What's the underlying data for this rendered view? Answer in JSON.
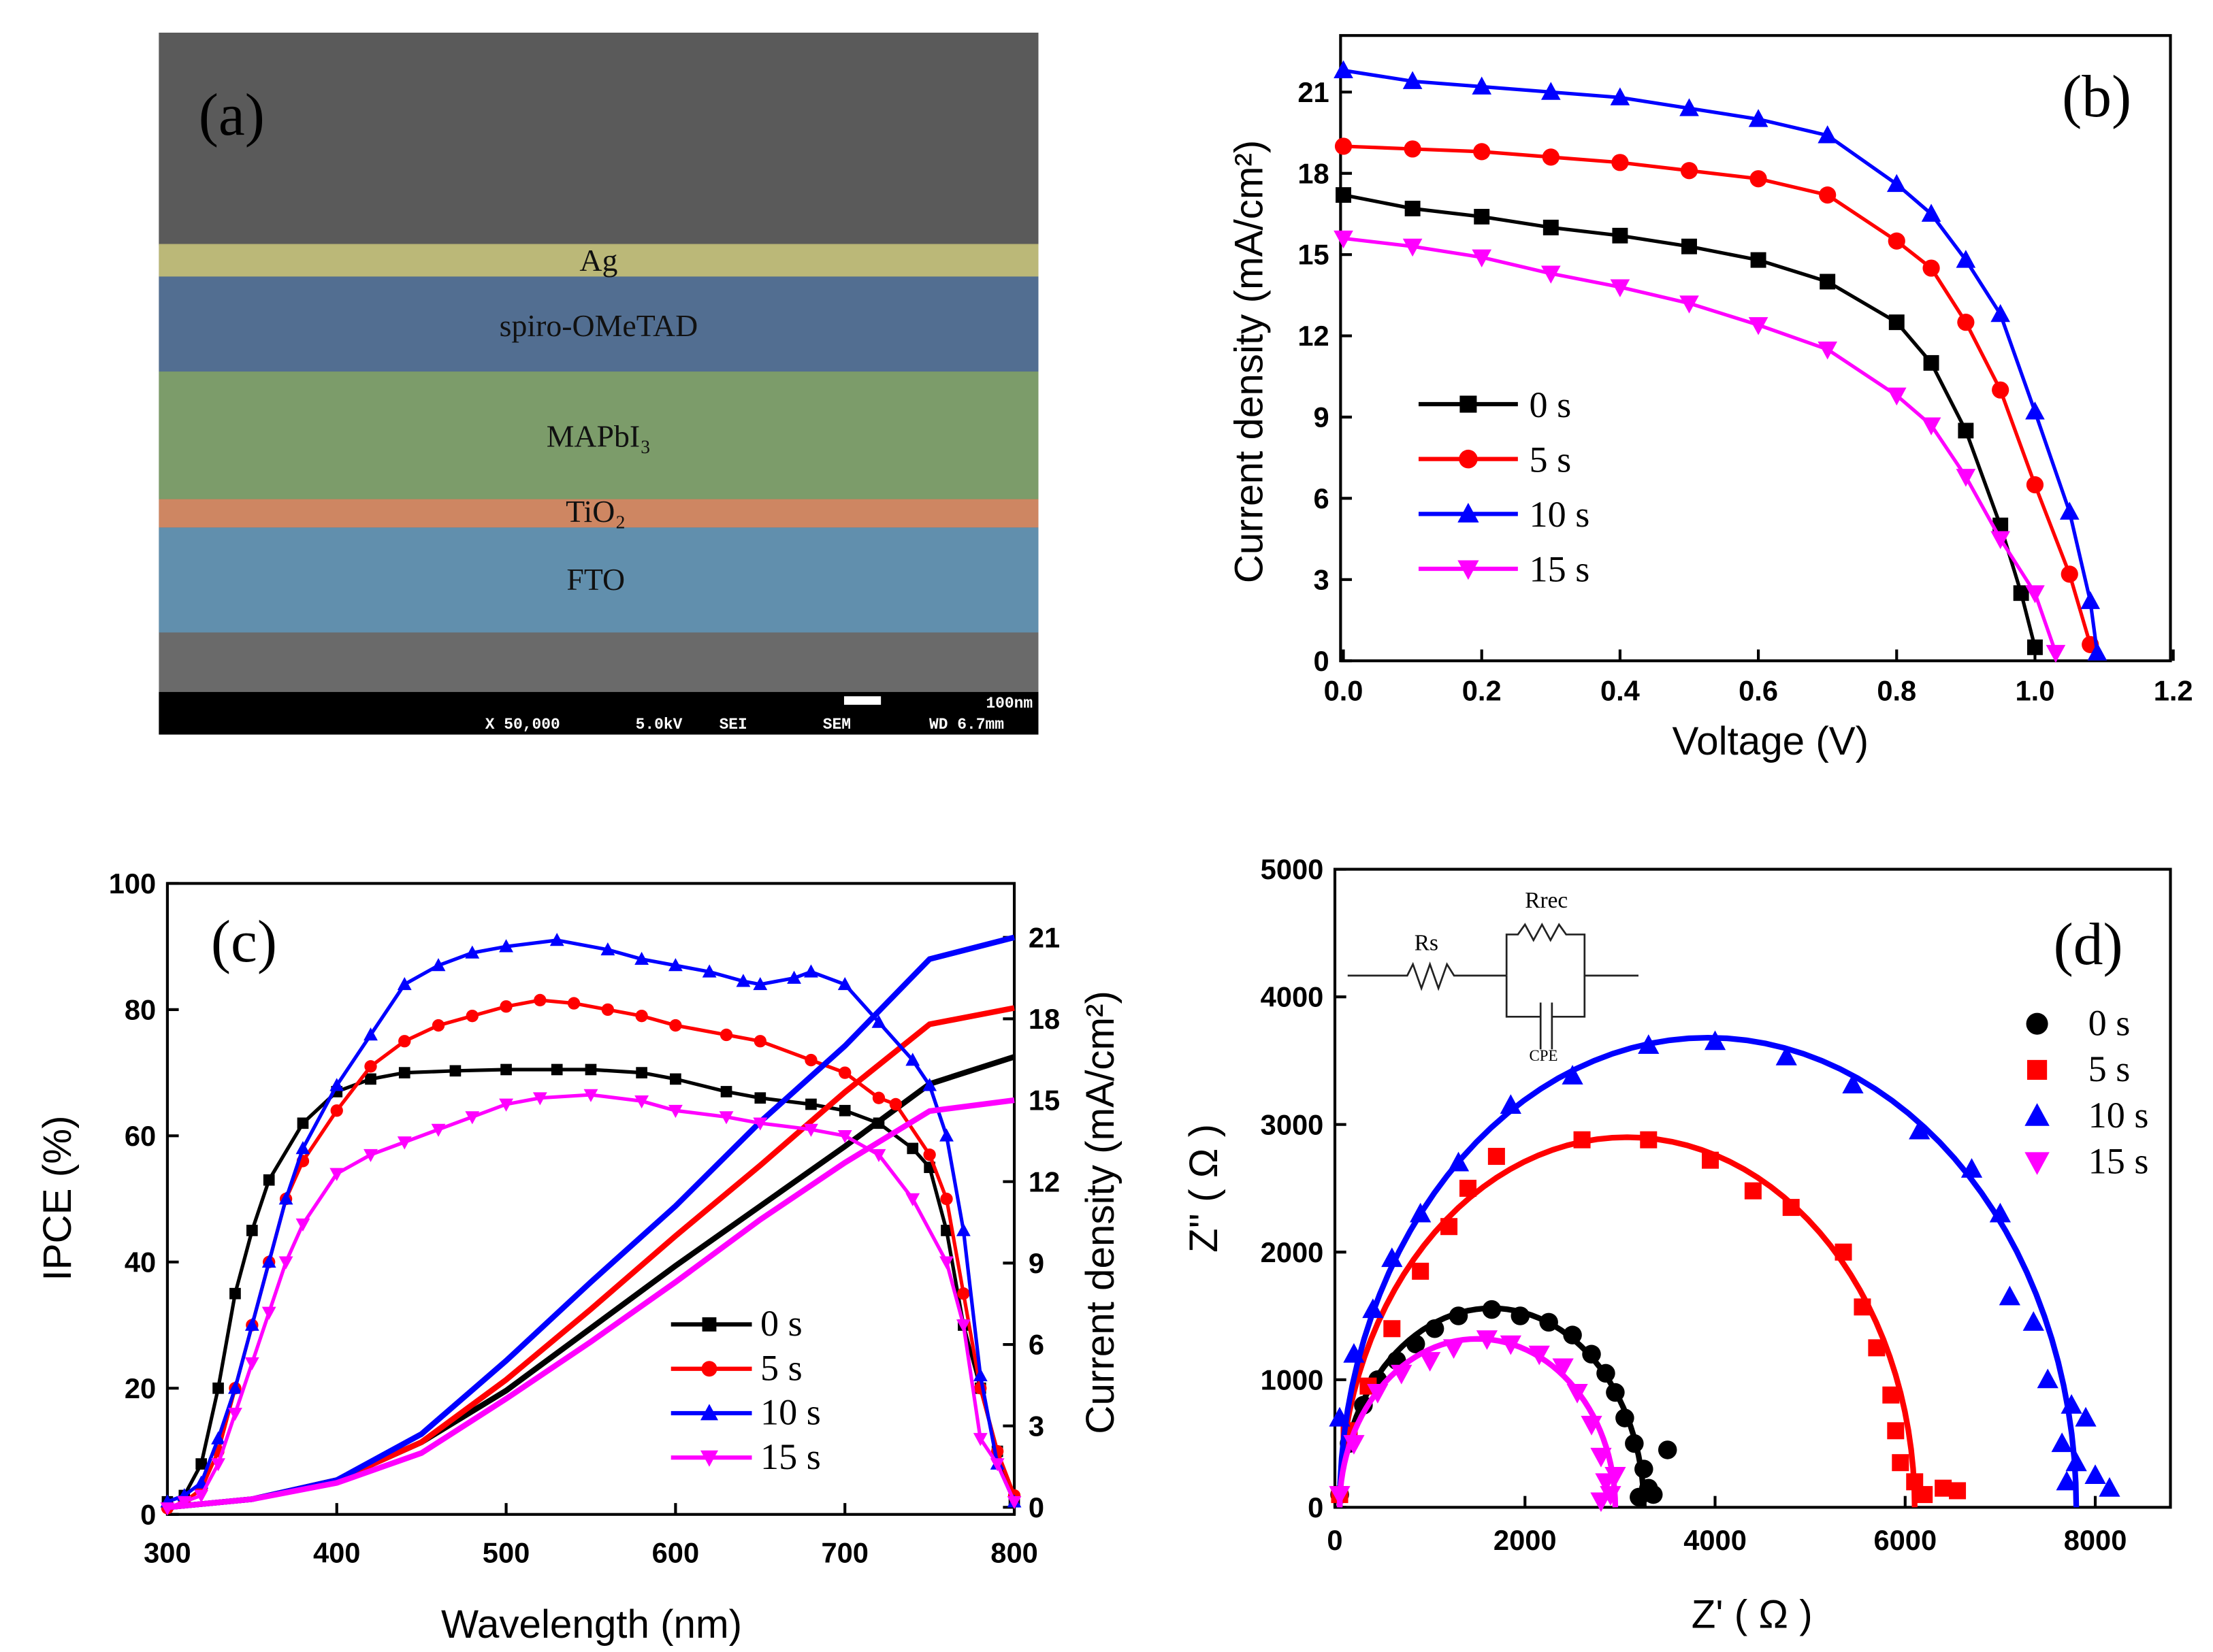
{
  "panel_a": {
    "label": "(a)",
    "layers": [
      "Ag",
      "spiro-OMeTAD",
      "MAPbI₃",
      "TiO₂",
      "FTO"
    ],
    "layer_colors": [
      "#c9c67a",
      "#4d6f98",
      "#7fa56a",
      "#d98a62",
      "#5f95b8"
    ],
    "sem_bar": {
      "magnification": "X 50,000",
      "voltage": "5.0kV",
      "mode": "SEI",
      "instrument": "SEM",
      "wd": "WD 6.7mm",
      "scale": "100nm"
    }
  },
  "chart_data": [
    {
      "id": "b",
      "type": "line",
      "label": "(b)",
      "xlabel": "Voltage (V)",
      "ylabel": "Current density (mA/cm²)",
      "xlim": [
        0,
        1.2
      ],
      "ylim": [
        0,
        22.9
      ],
      "xticks": [
        "0.0",
        "0.2",
        "0.4",
        "0.6",
        "0.8",
        "1.0",
        "1.2"
      ],
      "yticks": [
        "0",
        "3",
        "6",
        "9",
        "12",
        "15",
        "18",
        "21"
      ],
      "legend": "center-left",
      "series": [
        {
          "name": "0 s",
          "color": "#000000",
          "marker": "square",
          "x": [
            0,
            0.1,
            0.2,
            0.3,
            0.4,
            0.5,
            0.6,
            0.7,
            0.8,
            0.85,
            0.9,
            0.95,
            0.98,
            1.0
          ],
          "y": [
            17.2,
            16.7,
            16.4,
            16.0,
            15.7,
            15.3,
            14.8,
            14.0,
            12.5,
            11.0,
            8.5,
            5.0,
            2.5,
            0.5
          ]
        },
        {
          "name": "5 s",
          "color": "#ff0000",
          "marker": "circle",
          "x": [
            0,
            0.1,
            0.2,
            0.3,
            0.4,
            0.5,
            0.6,
            0.7,
            0.8,
            0.85,
            0.9,
            0.95,
            1.0,
            1.05,
            1.08
          ],
          "y": [
            19.0,
            18.9,
            18.8,
            18.6,
            18.4,
            18.1,
            17.8,
            17.2,
            15.5,
            14.5,
            12.5,
            10.0,
            6.5,
            3.2,
            0.6
          ]
        },
        {
          "name": "10 s",
          "color": "#0000ff",
          "marker": "triangle-up",
          "x": [
            0,
            0.1,
            0.2,
            0.3,
            0.4,
            0.5,
            0.6,
            0.7,
            0.8,
            0.85,
            0.9,
            0.95,
            1.0,
            1.05,
            1.08,
            1.09
          ],
          "y": [
            21.8,
            21.4,
            21.2,
            21.0,
            20.8,
            20.4,
            20.0,
            19.4,
            17.6,
            16.5,
            14.8,
            12.8,
            9.2,
            5.5,
            2.2,
            0.3
          ]
        },
        {
          "name": "15 s",
          "color": "#ff00ff",
          "marker": "triangle-down",
          "x": [
            0,
            0.1,
            0.2,
            0.3,
            0.4,
            0.5,
            0.6,
            0.7,
            0.8,
            0.85,
            0.9,
            0.95,
            1.0,
            1.03
          ],
          "y": [
            15.6,
            15.3,
            14.9,
            14.3,
            13.8,
            13.2,
            12.4,
            11.5,
            9.8,
            8.7,
            6.8,
            4.5,
            2.5,
            0.3
          ]
        }
      ]
    },
    {
      "id": "c",
      "type": "line",
      "label": "(c)",
      "xlabel": "Wavelength (nm)",
      "ylabel": "IPCE (%)",
      "ylabel_right": "Current density (mA/cm²)",
      "xlim": [
        300,
        800
      ],
      "ylim": [
        0,
        100
      ],
      "ylim_right": [
        0,
        23.3
      ],
      "xticks": [
        "300",
        "400",
        "500",
        "600",
        "700",
        "800"
      ],
      "yticks": [
        "0",
        "20",
        "40",
        "60",
        "80",
        "100"
      ],
      "yticks_right": [
        "0",
        "3",
        "6",
        "9",
        "12",
        "15",
        "18",
        "21"
      ],
      "legend": "center",
      "series": [
        {
          "name": "0 s",
          "color": "#000000",
          "marker": "square",
          "x": [
            300,
            310,
            320,
            330,
            340,
            350,
            360,
            380,
            400,
            420,
            440,
            470,
            500,
            530,
            550,
            580,
            600,
            630,
            650,
            680,
            700,
            720,
            740,
            750,
            760,
            770,
            780,
            790,
            800
          ],
          "y": [
            2,
            3,
            8,
            20,
            35,
            45,
            53,
            62,
            67,
            69,
            70,
            70.3,
            70.5,
            70.5,
            70.5,
            70,
            69,
            67,
            66,
            65,
            64,
            62,
            58,
            55,
            45,
            30,
            20,
            10,
            2
          ],
          "jsc_x": [
            300,
            350,
            400,
            450,
            500,
            550,
            600,
            650,
            700,
            750,
            800
          ],
          "jsc_y": [
            0,
            0.3,
            1.0,
            2.4,
            4.3,
            6.6,
            8.9,
            11.1,
            13.3,
            15.6,
            16.6
          ]
        },
        {
          "name": "5 s",
          "color": "#ff0000",
          "marker": "circle",
          "x": [
            300,
            310,
            320,
            330,
            340,
            350,
            360,
            370,
            380,
            400,
            420,
            440,
            460,
            480,
            500,
            520,
            540,
            560,
            580,
            600,
            630,
            650,
            680,
            700,
            720,
            730,
            750,
            760,
            770,
            780,
            790,
            800
          ],
          "y": [
            1,
            2,
            4,
            10,
            20,
            30,
            40,
            50,
            56,
            64,
            71,
            75,
            77.5,
            79,
            80.5,
            81.5,
            81,
            80,
            79,
            77.5,
            76,
            75,
            72,
            70,
            66,
            65,
            57,
            50,
            35,
            20,
            10,
            3
          ],
          "jsc_x": [
            300,
            350,
            400,
            450,
            500,
            550,
            600,
            650,
            700,
            750,
            800
          ],
          "jsc_y": [
            0,
            0.3,
            1.0,
            2.4,
            4.7,
            7.3,
            10.0,
            12.6,
            15.3,
            17.8,
            18.4
          ]
        },
        {
          "name": "10 s",
          "color": "#0000ff",
          "marker": "triangle-up",
          "x": [
            300,
            310,
            320,
            330,
            340,
            350,
            360,
            370,
            380,
            400,
            420,
            440,
            460,
            480,
            500,
            530,
            560,
            580,
            600,
            620,
            640,
            650,
            670,
            680,
            700,
            720,
            740,
            750,
            760,
            770,
            780,
            790,
            800
          ],
          "y": [
            2,
            3,
            5,
            12,
            20,
            30,
            40,
            50,
            58,
            68,
            76,
            84,
            87,
            89,
            90,
            91,
            89.5,
            88,
            87,
            86,
            84.5,
            84,
            85,
            86,
            84,
            78,
            72,
            68,
            60,
            45,
            22,
            8,
            2
          ],
          "jsc_x": [
            300,
            350,
            400,
            450,
            500,
            550,
            600,
            650,
            700,
            750,
            800
          ],
          "jsc_y": [
            0,
            0.3,
            1.0,
            2.7,
            5.4,
            8.3,
            11.1,
            14.2,
            17.0,
            20.2,
            21.0
          ]
        },
        {
          "name": "15 s",
          "color": "#ff00ff",
          "marker": "triangle-down",
          "x": [
            300,
            310,
            320,
            330,
            340,
            350,
            360,
            370,
            380,
            400,
            420,
            440,
            460,
            480,
            500,
            520,
            550,
            580,
            600,
            630,
            650,
            680,
            700,
            720,
            740,
            760,
            770,
            780,
            790,
            800
          ],
          "y": [
            1,
            2,
            3,
            8,
            16,
            24,
            32,
            40,
            46,
            54,
            57,
            59,
            61,
            63,
            65,
            66,
            66.5,
            65.5,
            64,
            63,
            62,
            61,
            60,
            57,
            50,
            40,
            30,
            12,
            8,
            2
          ],
          "jsc_x": [
            300,
            350,
            400,
            450,
            500,
            550,
            600,
            650,
            700,
            750,
            800
          ],
          "jsc_y": [
            0,
            0.3,
            0.9,
            2.0,
            4.0,
            6.1,
            8.3,
            10.6,
            12.7,
            14.6,
            15.0
          ]
        }
      ]
    },
    {
      "id": "d",
      "type": "scatter",
      "label": "(d)",
      "xlabel": "Z' ( Ω )",
      "ylabel": "Z'' ( Ω )",
      "xlim": [
        0,
        8800
      ],
      "ylim": [
        0,
        5000
      ],
      "xticks": [
        "0",
        "2000",
        "4000",
        "6000",
        "8000"
      ],
      "yticks": [
        "0",
        "1000",
        "2000",
        "3000",
        "4000",
        "5000"
      ],
      "legend": "right",
      "circuit": {
        "labels": [
          "Rs",
          "Rrec",
          "CPE"
        ]
      },
      "series": [
        {
          "name": "0 s",
          "color": "#000000",
          "marker": "circle",
          "fit": {
            "Rs": 50,
            "Rrec": 3200,
            "peak": 1560
          },
          "points": [
            [
              50,
              100
            ],
            [
              150,
              500
            ],
            [
              300,
              800
            ],
            [
              450,
              1000
            ],
            [
              650,
              1150
            ],
            [
              850,
              1280
            ],
            [
              1050,
              1400
            ],
            [
              1300,
              1500
            ],
            [
              1650,
              1550
            ],
            [
              1950,
              1500
            ],
            [
              2250,
              1450
            ],
            [
              2500,
              1350
            ],
            [
              2700,
              1200
            ],
            [
              2850,
              1050
            ],
            [
              2950,
              900
            ],
            [
              3050,
              700
            ],
            [
              3150,
              500
            ],
            [
              3250,
              300
            ],
            [
              3300,
              150
            ],
            [
              3200,
              80
            ],
            [
              3350,
              100
            ],
            [
              3500,
              450
            ]
          ]
        },
        {
          "name": "5 s",
          "color": "#ff0000",
          "marker": "square",
          "fit": {
            "Rs": 50,
            "Rrec": 6050,
            "peak": 2900
          },
          "points": [
            [
              50,
              100
            ],
            [
              150,
              600
            ],
            [
              350,
              950
            ],
            [
              600,
              1400
            ],
            [
              900,
              1850
            ],
            [
              1200,
              2200
            ],
            [
              1400,
              2500
            ],
            [
              1700,
              2750
            ],
            [
              2600,
              2880
            ],
            [
              3300,
              2880
            ],
            [
              3950,
              2720
            ],
            [
              4400,
              2480
            ],
            [
              4800,
              2350
            ],
            [
              5350,
              2000
            ],
            [
              5550,
              1570
            ],
            [
              5700,
              1250
            ],
            [
              5850,
              880
            ],
            [
              5900,
              600
            ],
            [
              5950,
              350
            ],
            [
              6100,
              200
            ],
            [
              6200,
              100
            ],
            [
              6400,
              150
            ],
            [
              6550,
              130
            ]
          ]
        },
        {
          "name": "10 s",
          "color": "#0000ff",
          "marker": "triangle-up",
          "fit": {
            "Rs": 50,
            "Rrec": 7750,
            "peak": 3680
          },
          "points": [
            [
              50,
              700
            ],
            [
              200,
              1200
            ],
            [
              400,
              1550
            ],
            [
              600,
              1950
            ],
            [
              900,
              2300
            ],
            [
              1300,
              2700
            ],
            [
              1850,
              3150
            ],
            [
              2500,
              3380
            ],
            [
              3300,
              3620
            ],
            [
              4000,
              3650
            ],
            [
              4750,
              3530
            ],
            [
              5450,
              3310
            ],
            [
              6150,
              2950
            ],
            [
              6700,
              2650
            ],
            [
              7000,
              2300
            ],
            [
              7100,
              1650
            ],
            [
              7350,
              1450
            ],
            [
              7500,
              1000
            ],
            [
              7750,
              800
            ],
            [
              7650,
              500
            ],
            [
              7900,
              700
            ],
            [
              7800,
              350
            ],
            [
              7700,
              200
            ],
            [
              8000,
              250
            ],
            [
              8150,
              150
            ]
          ]
        },
        {
          "name": "15 s",
          "color": "#ff00ff",
          "marker": "triangle-down",
          "fit": {
            "Rs": 50,
            "Rrec": 2900,
            "peak": 1320
          },
          "points": [
            [
              50,
              100
            ],
            [
              200,
              500
            ],
            [
              450,
              900
            ],
            [
              700,
              1050
            ],
            [
              1000,
              1150
            ],
            [
              1250,
              1250
            ],
            [
              1600,
              1320
            ],
            [
              1850,
              1280
            ],
            [
              2150,
              1200
            ],
            [
              2400,
              1100
            ],
            [
              2550,
              900
            ],
            [
              2700,
              650
            ],
            [
              2800,
              400
            ],
            [
              2850,
              200
            ],
            [
              2900,
              100
            ],
            [
              2950,
              250
            ],
            [
              2800,
              50
            ]
          ]
        }
      ]
    }
  ]
}
